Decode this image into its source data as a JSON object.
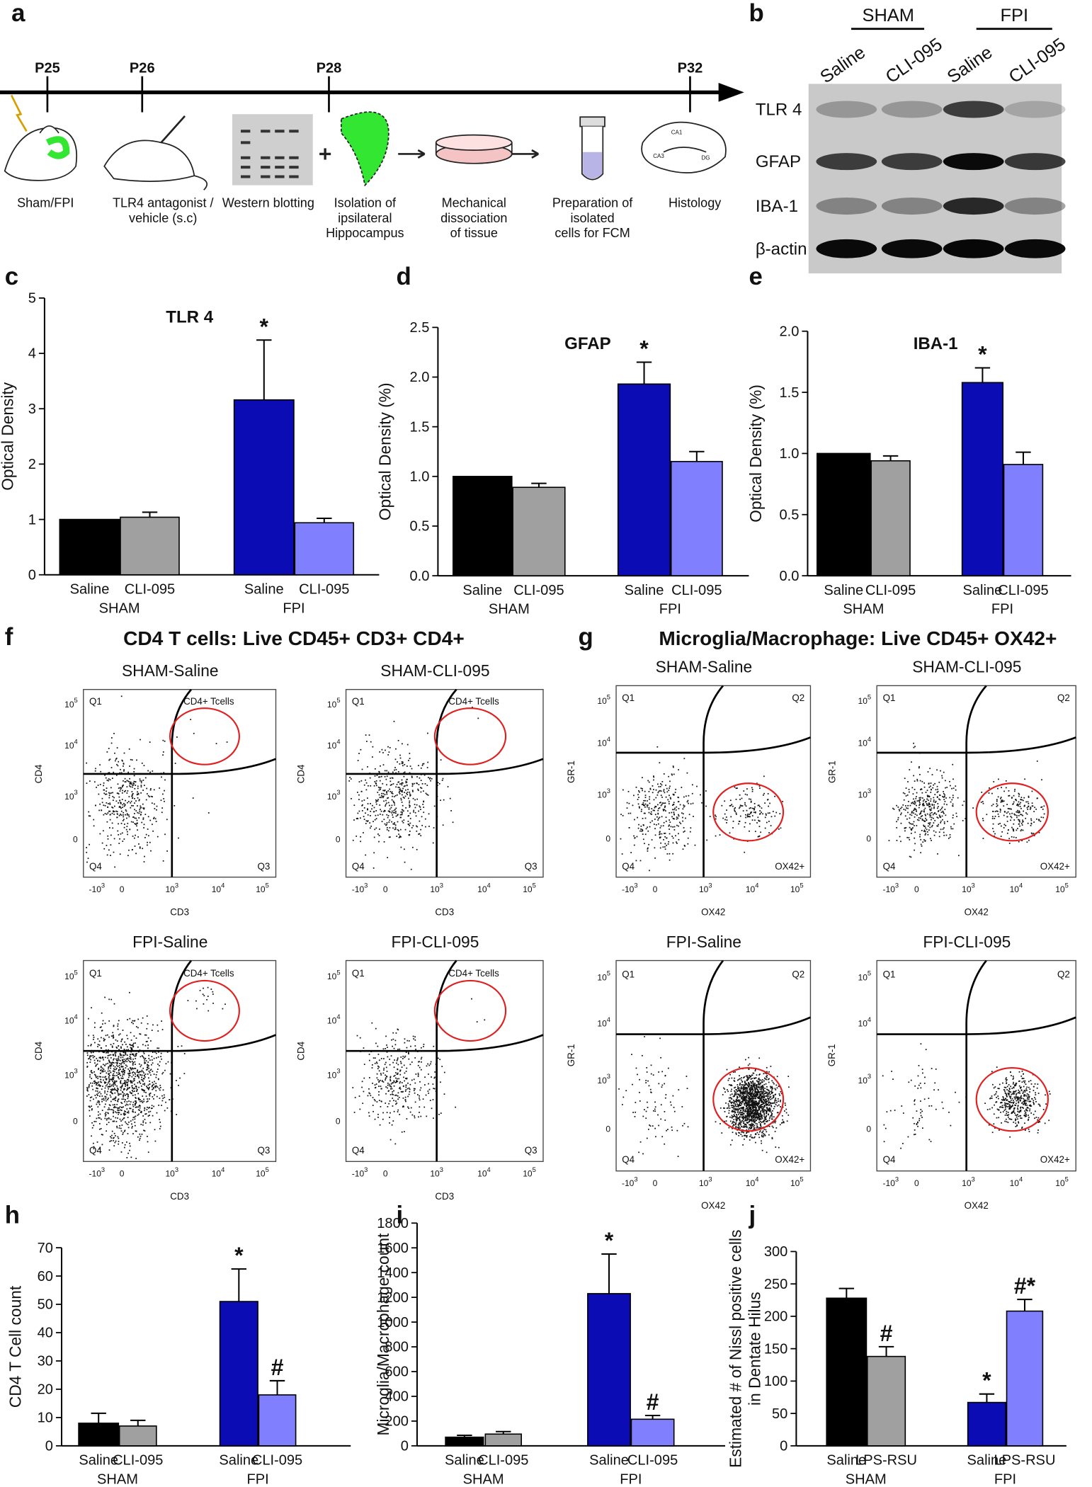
{
  "panel_labels": [
    "a",
    "b",
    "c",
    "d",
    "e",
    "f",
    "g",
    "h",
    "i",
    "j"
  ],
  "timeline": {
    "days": [
      "P25",
      "P26",
      "P28",
      "P32"
    ],
    "steps": [
      [
        "Sham/FPI"
      ],
      [
        "TLR4 antagonist /",
        "vehicle (s.c)"
      ],
      [
        "Western blotting"
      ],
      [
        "Isolation of",
        "ipsilateral",
        "Hippocampus"
      ],
      [
        "Mechanical",
        "dissociation",
        "of tissue"
      ],
      [
        "Preparation of",
        "isolated",
        "cells for FCM"
      ],
      [
        "Histology"
      ]
    ],
    "brain_regions": [
      "CA1",
      "CA3",
      "DG"
    ]
  },
  "western_blot": {
    "groups": [
      "SHAM",
      "FPI"
    ],
    "lanes": [
      "Saline",
      "CLI-095",
      "Saline",
      "CLI-095"
    ],
    "proteins": [
      "TLR 4",
      "GFAP",
      "IBA-1",
      "β-actin"
    ]
  },
  "chart_data": [
    {
      "type": "bar",
      "title": "TLR 4",
      "y_label": [
        "Optical Density"
      ],
      "categories": [
        "Saline",
        "CLI-095",
        "Saline",
        "CLI-095"
      ],
      "groups": [
        "SHAM",
        "FPI"
      ],
      "values": [
        1,
        1.04,
        3.16,
        0.94
      ],
      "errors": [
        0,
        0.09,
        1.08,
        0.08
      ],
      "colors": [
        "#000000",
        "#a0a0a0",
        "#0c0cb4",
        "#8080ff"
      ],
      "annotations": [
        null,
        null,
        "*",
        null
      ],
      "ylim": [
        0,
        5
      ],
      "yticks": [
        0,
        1,
        2,
        3,
        4,
        5
      ]
    },
    {
      "type": "bar",
      "title": "GFAP",
      "y_label": [
        "Optical Density (%)"
      ],
      "categories": [
        "Saline",
        "CLI-095",
        "Saline",
        "CLI-095"
      ],
      "groups": [
        "SHAM",
        "FPI"
      ],
      "values": [
        1,
        0.89,
        1.93,
        1.15
      ],
      "errors": [
        0,
        0.04,
        0.22,
        0.1
      ],
      "colors": [
        "#000000",
        "#a0a0a0",
        "#0c0cb4",
        "#8080ff"
      ],
      "annotations": [
        null,
        null,
        "*",
        null
      ],
      "ylim": [
        0,
        2.5
      ],
      "yticks": [
        {
          "value": 0,
          "label": "0.0"
        },
        0.5,
        {
          "value": 1,
          "label": "1.0"
        },
        1.5,
        {
          "value": 2,
          "label": "2.0"
        },
        2.5
      ]
    },
    {
      "type": "bar",
      "title": "IBA-1",
      "y_label": [
        "Optical Density (%)"
      ],
      "categories": [
        "Saline",
        "CLI-095",
        "Saline",
        "CLI-095"
      ],
      "groups": [
        "SHAM",
        "FPI"
      ],
      "values": [
        1,
        0.94,
        1.58,
        0.91
      ],
      "errors": [
        0,
        0.04,
        0.12,
        0.1
      ],
      "colors": [
        "#000000",
        "#a0a0a0",
        "#0c0cb4",
        "#8080ff"
      ],
      "annotations": [
        null,
        null,
        "*",
        null
      ],
      "ylim": [
        0,
        2
      ],
      "yticks": [
        {
          "value": 0,
          "label": "0.0"
        },
        0.5,
        {
          "value": 1,
          "label": "1.0"
        },
        1.5,
        {
          "value": 2,
          "label": "2.0"
        }
      ]
    },
    {
      "type": "bar",
      "y_label": [
        "CD4 T Cell count"
      ],
      "categories": [
        "Saline",
        "CLI-095",
        "Saline",
        "CLI-095"
      ],
      "groups": [
        "SHAM",
        "FPI"
      ],
      "values": [
        8,
        7,
        51,
        18
      ],
      "errors": [
        3.5,
        2,
        11.5,
        5
      ],
      "colors": [
        "#000000",
        "#a0a0a0",
        "#0c0cb4",
        "#8080ff"
      ],
      "annotations": [
        null,
        null,
        "*",
        "#"
      ],
      "ylim": [
        0,
        70
      ],
      "yticks": [
        0,
        10,
        20,
        30,
        40,
        50,
        60,
        70
      ]
    },
    {
      "type": "bar",
      "y_label": [
        "Microglia/Macrophage count"
      ],
      "categories": [
        "Saline",
        "CLI-095",
        "Saline",
        "CLI-095"
      ],
      "groups": [
        "SHAM",
        "FPI"
      ],
      "values": [
        70,
        95,
        1230,
        215
      ],
      "errors": [
        15,
        20,
        320,
        30
      ],
      "colors": [
        "#000000",
        "#a0a0a0",
        "#0c0cb4",
        "#8080ff"
      ],
      "annotations": [
        null,
        null,
        "*",
        "#"
      ],
      "ylim": [
        0,
        1800
      ],
      "yticks": [
        0,
        200,
        400,
        600,
        800,
        1000,
        1200,
        1400,
        1600,
        1800
      ]
    },
    {
      "type": "bar",
      "y_label": [
        "Estimated # of Nissl positive cells",
        "in Dentate Hilus"
      ],
      "categories": [
        "Saline",
        "LPS-RSU",
        "Saline",
        "LPS-RSU"
      ],
      "groups": [
        "SHAM",
        "FPI"
      ],
      "values": [
        228,
        138,
        67,
        208
      ],
      "errors": [
        15,
        15,
        13,
        18
      ],
      "colors": [
        "#000000",
        "#a0a0a0",
        "#0c0cb4",
        "#8080ff"
      ],
      "annotations": [
        null,
        "#",
        "*",
        "#*"
      ],
      "ylim": [
        0,
        300
      ],
      "yticks": [
        0,
        50,
        100,
        150,
        200,
        250,
        300
      ]
    }
  ],
  "flow_cytometry": [
    {
      "title": "CD4 T cells: Live CD45+ CD3+ CD4+",
      "x_label": "CD3",
      "y_label": "CD4",
      "gate_label": "CD4+ Tcells",
      "quadrants": [
        "Q1",
        "Q3",
        "Q4"
      ],
      "plots": [
        "SHAM-Saline",
        "SHAM-CLI-095",
        "FPI-Saline",
        "FPI-CLI-095"
      ],
      "xticks": [
        {
          "base": "-10",
          "exp": "3"
        },
        {
          "base": "0"
        },
        {
          "base": "10",
          "exp": "3"
        },
        {
          "base": "10",
          "exp": "4"
        },
        {
          "base": "10",
          "exp": "5"
        }
      ],
      "yticks": [
        {
          "base": "10",
          "exp": "5"
        },
        {
          "base": "10",
          "exp": "4"
        },
        {
          "base": "10",
          "exp": "3"
        },
        {
          "base": "0"
        }
      ]
    },
    {
      "title": "Microglia/Macrophage: Live  CD45+ OX42+",
      "x_label": "OX42",
      "y_label": "GR-1",
      "gate_label": "OX42+",
      "quadrants": [
        "Q1",
        "Q2",
        "Q4"
      ],
      "plots": [
        "SHAM-Saline",
        "SHAM-CLI-095",
        "FPI-Saline",
        "FPI-CLI-095"
      ],
      "xticks": [
        {
          "base": "-10",
          "exp": "3"
        },
        {
          "base": "0"
        },
        {
          "base": "10",
          "exp": "3"
        },
        {
          "base": "10",
          "exp": "4"
        },
        {
          "base": "10",
          "exp": "5"
        }
      ],
      "yticks": [
        {
          "base": "10",
          "exp": "5"
        },
        {
          "base": "10",
          "exp": "4"
        },
        {
          "base": "10",
          "exp": "3"
        },
        {
          "base": "0"
        }
      ]
    }
  ]
}
